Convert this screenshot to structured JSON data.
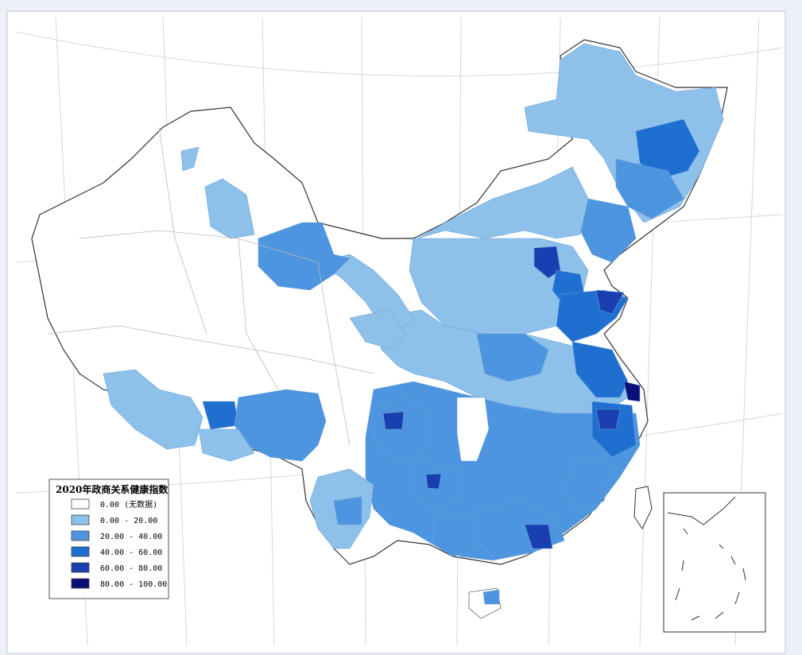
{
  "legend": {
    "title": "2020年政商关系健康指数",
    "classes": [
      {
        "label": "0.00 (无数据)",
        "color": "#ffffff"
      },
      {
        "label": "0.00 - 20.00",
        "color": "#8ec1ea"
      },
      {
        "label": "20.00 - 40.00",
        "color": "#4e95e0"
      },
      {
        "label": "40.00 - 60.00",
        "color": "#1f6fd1"
      },
      {
        "label": "60.00 - 80.00",
        "color": "#1a3fb0"
      },
      {
        "label": "80.00 - 100.00",
        "color": "#0a0f7a"
      }
    ]
  },
  "colors": {
    "outer_background": "#eef0f8",
    "map_background": "#ffffff",
    "graticule": "#d8d8d8",
    "border": "#333333"
  }
}
